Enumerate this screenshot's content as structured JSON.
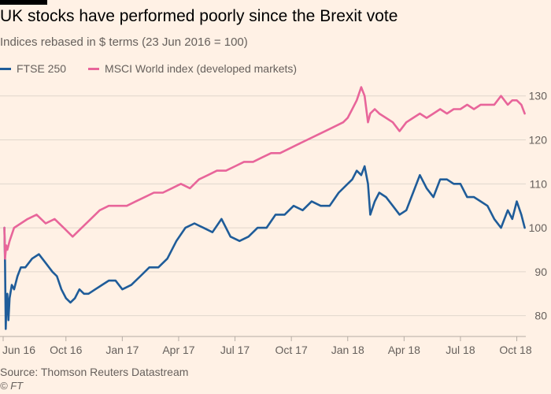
{
  "header": {
    "title": "UK stocks have performed poorly since the Brexit vote",
    "subtitle": "Indices rebased in $ terms (23 Jun 2016 = 100)"
  },
  "footer": {
    "source": "Source: Thomson Reuters Datastream",
    "copyright": "© FT"
  },
  "colors": {
    "ftse": "#1f5c99",
    "msci": "#e8659a",
    "grid": "#e0d6cc",
    "text": "#66605c"
  },
  "chart_data": {
    "type": "line",
    "title": "UK stocks have performed poorly since the Brexit vote",
    "subtitle": "Indices rebased in $ terms (23 Jun 2016 = 100)",
    "xlabel": "",
    "ylabel": "",
    "ylim": [
      76,
      133
    ],
    "yticks": [
      80,
      90,
      100,
      110,
      120,
      130
    ],
    "ytick_labels": [
      "80",
      "90",
      "100",
      "110",
      "120",
      "130"
    ],
    "xlim": [
      2016.475,
      2018.79
    ],
    "xticks": [
      2016.42,
      2016.75,
      2017.0,
      2017.25,
      2017.5,
      2017.75,
      2018.0,
      2018.25,
      2018.5,
      2018.75
    ],
    "xtick_labels": [
      "Jun 16",
      "Oct 16",
      "Jan 17",
      "Apr 17",
      "Jul 17",
      "Oct 17",
      "Jan 18",
      "Apr 18",
      "Jul 18",
      "Oct 18"
    ],
    "grid": true,
    "legend_position": "top-left",
    "series": [
      {
        "name": "FTSE 250",
        "color": "#1f5c99",
        "x": [
          2016.477,
          2016.48,
          2016.483,
          2016.487,
          2016.49,
          2016.495,
          2016.5,
          2016.51,
          2016.52,
          2016.535,
          2016.55,
          2016.57,
          2016.6,
          2016.63,
          2016.66,
          2016.69,
          2016.71,
          2016.73,
          2016.75,
          2016.77,
          2016.79,
          2016.81,
          2016.83,
          2016.85,
          2016.88,
          2016.91,
          2016.94,
          2016.97,
          2017.0,
          2017.04,
          2017.08,
          2017.12,
          2017.16,
          2017.2,
          2017.24,
          2017.28,
          2017.32,
          2017.36,
          2017.4,
          2017.44,
          2017.48,
          2017.52,
          2017.56,
          2017.6,
          2017.64,
          2017.68,
          2017.72,
          2017.76,
          2017.8,
          2017.84,
          2017.88,
          2017.92,
          2017.96,
          2018.0,
          2018.02,
          2018.04,
          2018.06,
          2018.075,
          2018.09,
          2018.1,
          2018.12,
          2018.14,
          2018.17,
          2018.2,
          2018.23,
          2018.26,
          2018.29,
          2018.32,
          2018.35,
          2018.38,
          2018.41,
          2018.44,
          2018.47,
          2018.5,
          2018.53,
          2018.56,
          2018.59,
          2018.62,
          2018.65,
          2018.68,
          2018.71,
          2018.73,
          2018.75,
          2018.77,
          2018.785
        ],
        "values": [
          100,
          92,
          77,
          84,
          85,
          79,
          84,
          87,
          86,
          89,
          91,
          91,
          93,
          94,
          92,
          90,
          89,
          86,
          84,
          83,
          84,
          86,
          85,
          85,
          86,
          87,
          88,
          88,
          86,
          87,
          89,
          91,
          91,
          93,
          97,
          100,
          101,
          100,
          99,
          102,
          98,
          97,
          98,
          100,
          100,
          103,
          103,
          105,
          104,
          106,
          105,
          105,
          108,
          110,
          111,
          113,
          112,
          114,
          110,
          103,
          106,
          108,
          107,
          105,
          103,
          104,
          108,
          112,
          109,
          107,
          111,
          111,
          110,
          110,
          107,
          107,
          106,
          105,
          102,
          100,
          104,
          102,
          106,
          103,
          100
        ]
      },
      {
        "name": "MSCI World index (developed markets)",
        "color": "#e8659a",
        "x": [
          2016.477,
          2016.48,
          2016.485,
          2016.49,
          2016.5,
          2016.52,
          2016.55,
          2016.58,
          2016.62,
          2016.66,
          2016.7,
          2016.74,
          2016.78,
          2016.82,
          2016.86,
          2016.9,
          2016.94,
          2016.98,
          2017.02,
          2017.06,
          2017.1,
          2017.14,
          2017.18,
          2017.22,
          2017.26,
          2017.3,
          2017.34,
          2017.38,
          2017.42,
          2017.46,
          2017.5,
          2017.54,
          2017.58,
          2017.62,
          2017.66,
          2017.7,
          2017.74,
          2017.78,
          2017.82,
          2017.86,
          2017.9,
          2017.94,
          2017.98,
          2018.0,
          2018.02,
          2018.04,
          2018.06,
          2018.075,
          2018.09,
          2018.1,
          2018.12,
          2018.14,
          2018.17,
          2018.2,
          2018.23,
          2018.26,
          2018.29,
          2018.32,
          2018.35,
          2018.38,
          2018.41,
          2018.44,
          2018.47,
          2018.5,
          2018.53,
          2018.56,
          2018.59,
          2018.62,
          2018.65,
          2018.68,
          2018.71,
          2018.73,
          2018.75,
          2018.77,
          2018.785
        ],
        "values": [
          100,
          93,
          96,
          95,
          97,
          100,
          101,
          102,
          103,
          101,
          102,
          100,
          98,
          100,
          102,
          104,
          105,
          105,
          105,
          106,
          107,
          108,
          108,
          109,
          110,
          109,
          111,
          112,
          113,
          113,
          114,
          115,
          115,
          116,
          117,
          117,
          118,
          119,
          120,
          121,
          122,
          123,
          124,
          125,
          127,
          129,
          132,
          130,
          124,
          126,
          127,
          126,
          125,
          124,
          122,
          124,
          125,
          126,
          125,
          126,
          127,
          126,
          127,
          127,
          128,
          127,
          128,
          128,
          128,
          130,
          128,
          129,
          129,
          128,
          126
        ]
      }
    ]
  }
}
